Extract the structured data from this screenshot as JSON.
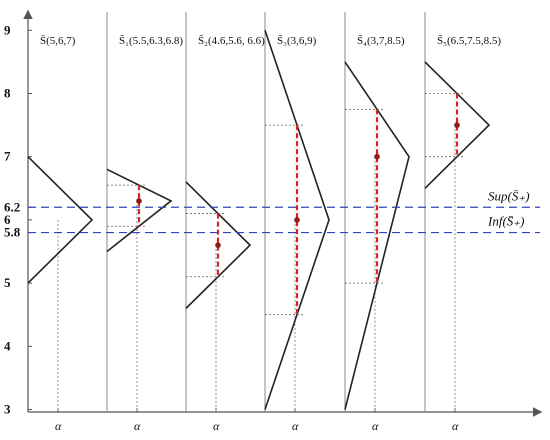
{
  "diagram": {
    "y_axis": {
      "ticks": [
        {
          "value": 3,
          "label": "3"
        },
        {
          "value": 4,
          "label": "4"
        },
        {
          "value": 5,
          "label": "5"
        },
        {
          "value": 5.8,
          "label": "5.8"
        },
        {
          "value": 6,
          "label": "6"
        },
        {
          "value": 6.2,
          "label": "6.2"
        },
        {
          "value": 7,
          "label": "7"
        },
        {
          "value": 8,
          "label": "8"
        },
        {
          "value": 9,
          "label": "9"
        }
      ]
    },
    "alpha_label": "α",
    "reference_lines": [
      {
        "value": 6.2,
        "label": "Sup(S̄₊)"
      },
      {
        "value": 5.8,
        "label": "Inf(S̄₊)"
      }
    ],
    "panels": [
      {
        "title": "S̄(5,6,7)",
        "a": 5,
        "b": 6,
        "c": 7,
        "show_interval": false
      },
      {
        "title": "S̃₁(5.5,6.3,6.8)",
        "a": 5.5,
        "b": 6.3,
        "c": 6.8,
        "show_interval": true
      },
      {
        "title": "S̃₂(4.6,5.6, 6.6)",
        "a": 4.6,
        "b": 5.6,
        "c": 6.6,
        "show_interval": true
      },
      {
        "title": "S̃₃(3,6,9)",
        "a": 3,
        "b": 6,
        "c": 9,
        "show_interval": true
      },
      {
        "title": "S̃₄(3,7,8.5)",
        "a": 3,
        "b": 7,
        "c": 8.5,
        "show_interval": true
      },
      {
        "title": "S̃₅(6.5,7.5,8.5)",
        "a": 6.5,
        "b": 7.5,
        "c": 8.5,
        "show_interval": true
      }
    ]
  }
}
